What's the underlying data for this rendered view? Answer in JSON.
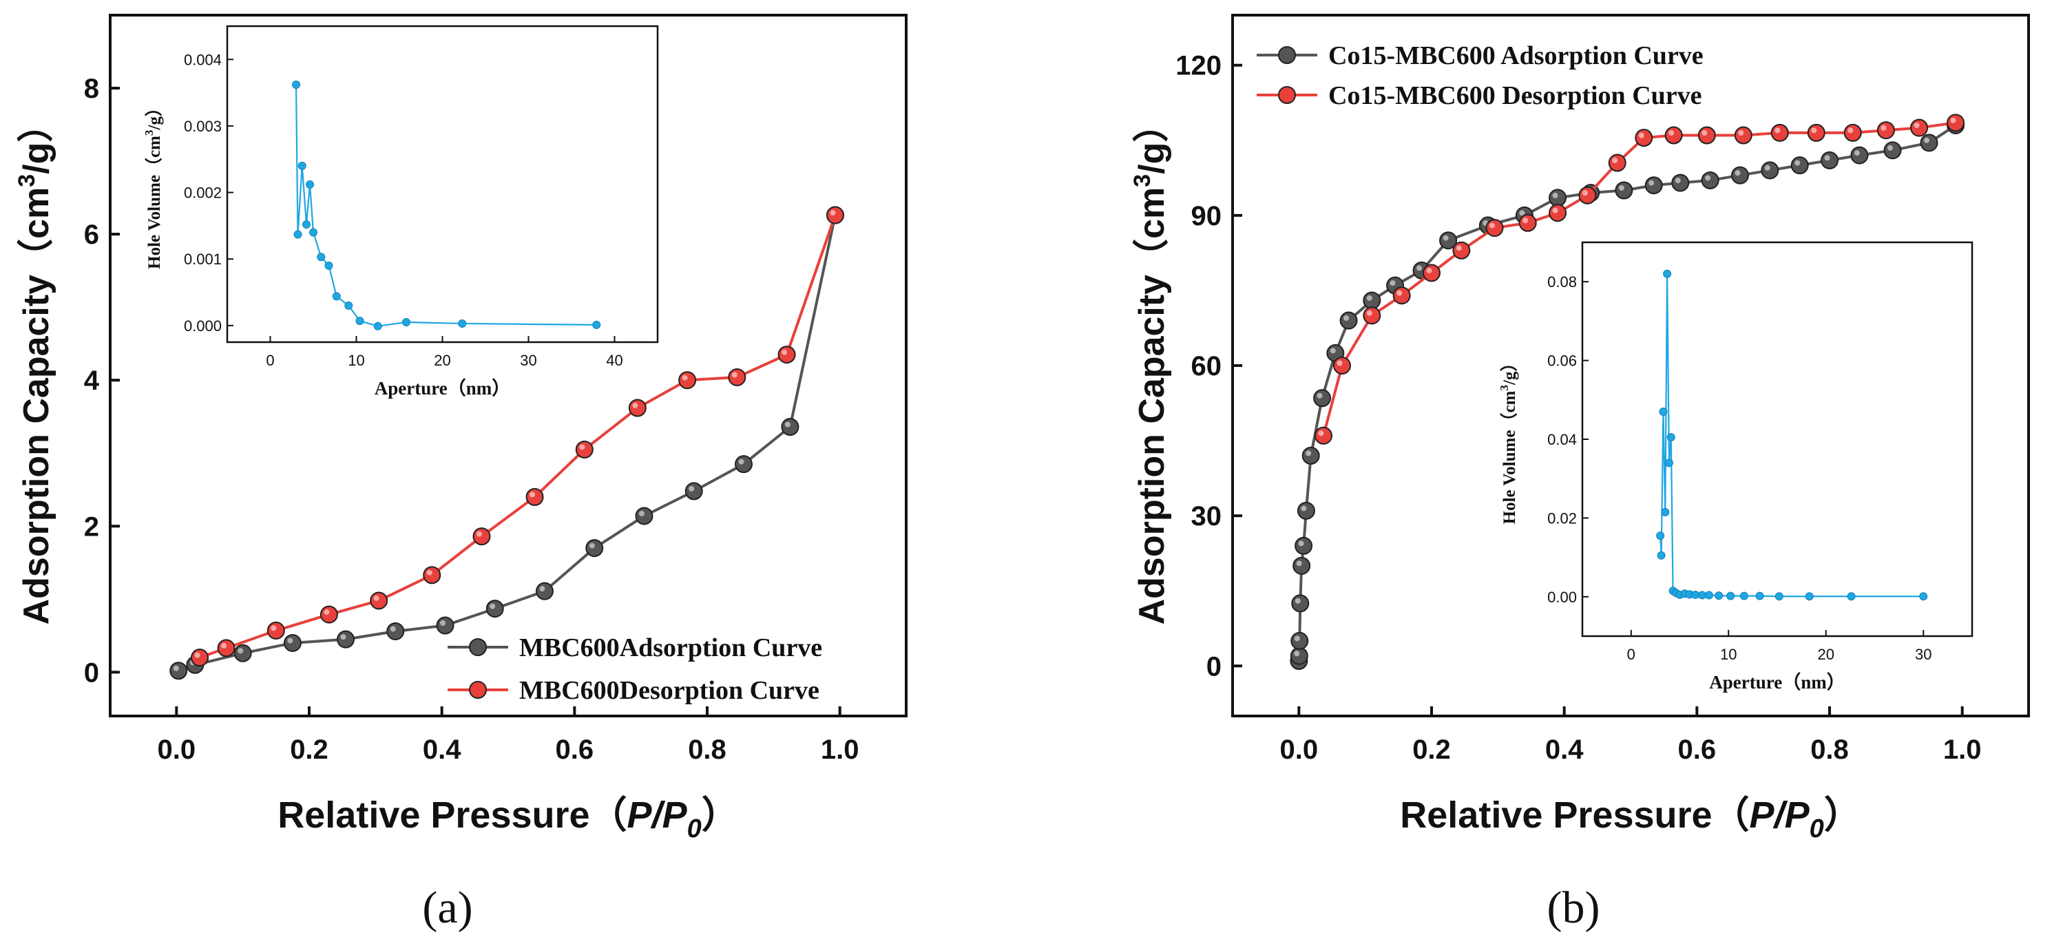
{
  "chart_data": [
    {
      "id": "a",
      "type": "line",
      "caption": "(a)",
      "xlabel_text": "Relative Pressure（",
      "xlabel_ital": "P/P",
      "xlabel_sub": "0",
      "xlabel_close": "）",
      "ylabel_main": "Adsorption Capacity（cm",
      "ylabel_sup": "3",
      "ylabel_tail": "/g）",
      "xlim": [
        -0.1,
        1.1
      ],
      "ylim": [
        -0.6,
        9.0
      ],
      "xticks": [
        0.0,
        0.2,
        0.4,
        0.6,
        0.8,
        1.0
      ],
      "xtick_labels": [
        "0.0",
        "0.2",
        "0.4",
        "0.6",
        "0.8",
        "1.0"
      ],
      "yticks": [
        0,
        2,
        4,
        6,
        8
      ],
      "ytick_labels": [
        "0",
        "2",
        "4",
        "6",
        "8"
      ],
      "legend_position": "bottom-right",
      "series": [
        {
          "name": "MBC600Adsorption Curve",
          "color": "#555555",
          "x": [
            0.003,
            0.028,
            0.1,
            0.175,
            0.255,
            0.33,
            0.405,
            0.48,
            0.555,
            0.63,
            0.705,
            0.78,
            0.855,
            0.925,
            0.993
          ],
          "y": [
            0.02,
            0.1,
            0.26,
            0.4,
            0.45,
            0.56,
            0.64,
            0.87,
            1.11,
            1.7,
            2.14,
            2.48,
            2.85,
            3.36,
            6.26
          ]
        },
        {
          "name": "MBC600Desorption Curve",
          "color": "#e8413c",
          "x": [
            0.993,
            0.92,
            0.845,
            0.77,
            0.695,
            0.615,
            0.54,
            0.46,
            0.385,
            0.305,
            0.23,
            0.15,
            0.075,
            0.035
          ],
          "y": [
            6.26,
            4.35,
            4.04,
            4.0,
            3.62,
            3.05,
            2.4,
            1.86,
            1.33,
            0.98,
            0.79,
            0.57,
            0.33,
            0.2
          ]
        }
      ],
      "inset": {
        "xlabel": "Aperture（nm）",
        "ylabel_main": "Hole Volume（cm",
        "ylabel_sup": "3",
        "ylabel_tail": "/g）",
        "xlim": [
          -5,
          45
        ],
        "ylim": [
          -0.00025,
          0.0045
        ],
        "xticks": [
          0,
          10,
          20,
          30,
          40
        ],
        "xtick_labels": [
          "0",
          "10",
          "20",
          "30",
          "40"
        ],
        "yticks": [
          0.0,
          0.001,
          0.002,
          0.003,
          0.004
        ],
        "ytick_labels": [
          "0.000",
          "0.001",
          "0.002",
          "0.003",
          "0.004"
        ],
        "color": "#1fa7e3",
        "x": [
          3.0,
          3.2,
          3.7,
          4.2,
          4.6,
          5.0,
          5.9,
          6.8,
          7.7,
          9.1,
          10.4,
          12.5,
          15.8,
          22.3,
          37.9
        ],
        "y": [
          0.00362,
          0.00137,
          0.0024,
          0.00152,
          0.00212,
          0.0014,
          0.00103,
          0.0009,
          0.00044,
          0.0003,
          7e-05,
          -1e-05,
          5e-05,
          3e-05,
          1e-05
        ]
      }
    },
    {
      "id": "b",
      "type": "line",
      "caption": "(b)",
      "xlabel_text": "Relative Pressure（",
      "xlabel_ital": "P/P",
      "xlabel_sub": "0",
      "xlabel_close": "）",
      "ylabel_main": "Adsorption Capacity（cm",
      "ylabel_sup": "3",
      "ylabel_tail": "/g）",
      "xlim": [
        -0.1,
        1.1
      ],
      "ylim": [
        -10,
        130
      ],
      "xticks": [
        0.0,
        0.2,
        0.4,
        0.6,
        0.8,
        1.0
      ],
      "xtick_labels": [
        "0.0",
        "0.2",
        "0.4",
        "0.6",
        "0.8",
        "1.0"
      ],
      "yticks": [
        0,
        30,
        60,
        90,
        120
      ],
      "ytick_labels": [
        "0",
        "30",
        "60",
        "90",
        "120"
      ],
      "legend_position": "top-left",
      "series": [
        {
          "name": "Co15-MBC600 Adsorption Curve",
          "color": "#555555",
          "x": [
            0.0,
            0.0005,
            0.001,
            0.002,
            0.004,
            0.007,
            0.011,
            0.018,
            0.035,
            0.055,
            0.075,
            0.11,
            0.145,
            0.185,
            0.225,
            0.285,
            0.34,
            0.39,
            0.44,
            0.49,
            0.535,
            0.575,
            0.62,
            0.665,
            0.71,
            0.755,
            0.8,
            0.845,
            0.895,
            0.95,
            0.99
          ],
          "y": [
            1.0,
            2.0,
            5.0,
            12.5,
            20.0,
            24.0,
            31.0,
            42.0,
            53.5,
            62.5,
            69.0,
            73.0,
            76.0,
            79.0,
            85.0,
            88.0,
            90.0,
            93.5,
            94.5,
            95.0,
            96.0,
            96.5,
            97.0,
            98.0,
            99.0,
            100.0,
            101.0,
            102.0,
            103.0,
            104.5,
            108.0
          ]
        },
        {
          "name": "Co15-MBC600 Desorption Curve",
          "color": "#e8413c",
          "x": [
            0.99,
            0.935,
            0.885,
            0.835,
            0.78,
            0.725,
            0.67,
            0.615,
            0.565,
            0.52,
            0.48,
            0.435,
            0.39,
            0.345,
            0.295,
            0.245,
            0.2,
            0.155,
            0.11,
            0.065,
            0.037
          ],
          "y": [
            108.5,
            107.5,
            107.0,
            106.5,
            106.5,
            106.5,
            106.0,
            106.0,
            106.0,
            105.5,
            100.5,
            94.0,
            90.5,
            88.5,
            87.5,
            83.0,
            78.5,
            74.0,
            70.0,
            60.0,
            46.0
          ]
        }
      ],
      "inset": {
        "xlabel": "Aperture（nm）",
        "ylabel_main": "Hole Volume（cm",
        "ylabel_sup": "3",
        "ylabel_tail": "/g）",
        "xlim": [
          -5,
          35
        ],
        "ylim": [
          -0.01,
          0.09
        ],
        "xticks": [
          0,
          10,
          20,
          30
        ],
        "xtick_labels": [
          "0",
          "10",
          "20",
          "30"
        ],
        "yticks": [
          0.0,
          0.02,
          0.04,
          0.06,
          0.08
        ],
        "ytick_labels": [
          "0.00",
          "0.02",
          "0.04",
          "0.06",
          "0.08"
        ],
        "color": "#1fa7e3",
        "x": [
          3.0,
          3.1,
          3.3,
          3.5,
          3.7,
          3.9,
          4.1,
          4.3,
          4.6,
          5.0,
          5.5,
          6.0,
          6.6,
          7.3,
          8.0,
          9.0,
          10.2,
          11.6,
          13.2,
          15.2,
          18.3,
          22.6,
          30.0
        ],
        "y": [
          0.0155,
          0.0105,
          0.047,
          0.0215,
          0.082,
          0.034,
          0.0405,
          0.0015,
          0.001,
          0.0005,
          0.0008,
          0.0006,
          0.0005,
          0.0004,
          0.0004,
          0.0003,
          0.0002,
          0.0002,
          0.0002,
          0.0001,
          0.0001,
          0.0001,
          0.0001
        ]
      }
    }
  ]
}
